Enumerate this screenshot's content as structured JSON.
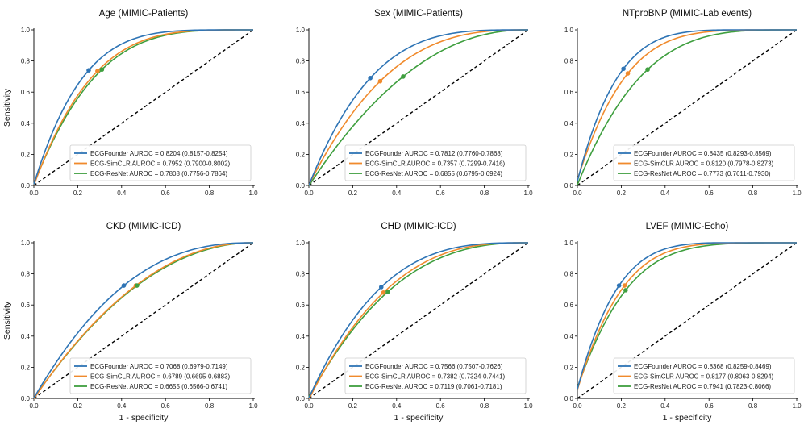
{
  "colors": {
    "ECGFounder": "#2e74b5",
    "ECG-SimCLR": "#f08a2c",
    "ECG-ResNet": "#3f9f3f",
    "diagonal": "#000000"
  },
  "chart_data": [
    {
      "type": "line",
      "title": "Age (MIMIC-Patients)",
      "xlabel": "",
      "ylabel": "Sensitivity",
      "xlim": [
        0,
        1
      ],
      "ylim": [
        0,
        1
      ],
      "xticks": [
        "0.0",
        "0.2",
        "0.4",
        "0.6",
        "0.8",
        "1.0"
      ],
      "yticks": [
        "0.0",
        "0.2",
        "0.4",
        "0.6",
        "0.8",
        "1.0"
      ],
      "legend_position": "bottom-right",
      "series": [
        {
          "name": "ECGFounder",
          "legend": "ECGFounder AUROC = 0.8204 (0.8157-0.8254)",
          "auc": 0.8204,
          "point": [
            0.25,
            0.74
          ]
        },
        {
          "name": "ECG-SimCLR",
          "legend": "ECG-SimCLR AUROC = 0.7952 (0.7900-0.8002)",
          "auc": 0.7952,
          "point": [
            0.29,
            0.735
          ]
        },
        {
          "name": "ECG-ResNet",
          "legend": "ECG-ResNet AUROC = 0.7808 (0.7756-0.7864)",
          "auc": 0.7808,
          "point": [
            0.31,
            0.745
          ]
        }
      ]
    },
    {
      "type": "line",
      "title": "Sex (MIMIC-Patients)",
      "xlabel": "",
      "ylabel": "",
      "xlim": [
        0,
        1
      ],
      "ylim": [
        0,
        1
      ],
      "xticks": [
        "0.0",
        "0.2",
        "0.4",
        "0.6",
        "0.8",
        "1.0"
      ],
      "yticks": [
        "0.0",
        "0.2",
        "0.4",
        "0.6",
        "0.8",
        "1.0"
      ],
      "legend_position": "bottom-right",
      "series": [
        {
          "name": "ECGFounder",
          "legend": "ECGFounder AUROC = 0.7812 (0.7760-0.7868)",
          "auc": 0.7812,
          "point": [
            0.28,
            0.69
          ]
        },
        {
          "name": "ECG-SimCLR",
          "legend": "ECG-SimCLR AUROC = 0.7357 (0.7299-0.7416)",
          "auc": 0.7357,
          "point": [
            0.325,
            0.67
          ]
        },
        {
          "name": "ECG-ResNet",
          "legend": "ECG-ResNet AUROC = 0.6855 (0.6795-0.6924)",
          "auc": 0.6855,
          "point": [
            0.43,
            0.7
          ]
        }
      ]
    },
    {
      "type": "line",
      "title": "NTproBNP (MIMIC-Lab events)",
      "xlabel": "",
      "ylabel": "",
      "xlim": [
        0,
        1
      ],
      "ylim": [
        0,
        1
      ],
      "xticks": [
        "0.0",
        "0.2",
        "0.4",
        "0.6",
        "0.8",
        "1.0"
      ],
      "yticks": [
        "0.0",
        "0.2",
        "0.4",
        "0.6",
        "0.8",
        "1.0"
      ],
      "legend_position": "bottom-right",
      "series": [
        {
          "name": "ECGFounder",
          "legend": "ECGFounder AUROC = 0.8435 (0.8293-0.8569)",
          "auc": 0.8435,
          "point": [
            0.21,
            0.75
          ]
        },
        {
          "name": "ECG-SimCLR",
          "legend": "ECG-SimCLR AUROC = 0.8120 (0.7978-0.8273)",
          "auc": 0.812,
          "point": [
            0.23,
            0.72
          ]
        },
        {
          "name": "ECG-ResNet",
          "legend": "ECG-ResNet AUROC = 0.7773 (0.7611-0.7930)",
          "auc": 0.7773,
          "point": [
            0.32,
            0.745
          ]
        }
      ]
    },
    {
      "type": "line",
      "title": "CKD (MIMIC-ICD)",
      "xlabel": "1 - specificity",
      "ylabel": "Sensitivity",
      "xlim": [
        0,
        1
      ],
      "ylim": [
        0,
        1
      ],
      "xticks": [
        "0.0",
        "0.2",
        "0.4",
        "0.6",
        "0.8",
        "1.0"
      ],
      "yticks": [
        "0.0",
        "0.2",
        "0.4",
        "0.6",
        "0.8",
        "1.0"
      ],
      "legend_position": "bottom-right",
      "series": [
        {
          "name": "ECGFounder",
          "legend": "ECGFounder AUROC = 0.7068 (0.6979-0.7149)",
          "auc": 0.7068,
          "point": [
            0.41,
            0.725
          ]
        },
        {
          "name": "ECG-SimCLR",
          "legend": "ECG-SimCLR AUROC = 0.6789 (0.6695-0.6883)",
          "auc": 0.6789,
          "point": [
            0.465,
            0.725
          ]
        },
        {
          "name": "ECG-ResNet",
          "legend": "ECG-ResNet AUROC = 0.6655 (0.6566-0.6741)",
          "auc": 0.6655,
          "point": [
            0.47,
            0.725
          ]
        }
      ]
    },
    {
      "type": "line",
      "title": "CHD (MIMIC-ICD)",
      "xlabel": "1 - specificity",
      "ylabel": "",
      "xlim": [
        0,
        1
      ],
      "ylim": [
        0,
        1
      ],
      "xticks": [
        "0.0",
        "0.2",
        "0.4",
        "0.6",
        "0.8",
        "1.0"
      ],
      "yticks": [
        "0.0",
        "0.2",
        "0.4",
        "0.6",
        "0.8",
        "1.0"
      ],
      "legend_position": "bottom-right",
      "series": [
        {
          "name": "ECGFounder",
          "legend": "ECGFounder AUROC = 0.7566 (0.7507-0.7626)",
          "auc": 0.7566,
          "point": [
            0.33,
            0.715
          ]
        },
        {
          "name": "ECG-SimCLR",
          "legend": "ECG-SimCLR AUROC = 0.7382 (0.7324-0.7441)",
          "auc": 0.7382,
          "point": [
            0.34,
            0.68
          ]
        },
        {
          "name": "ECG-ResNet",
          "legend": "ECG-ResNet AUROC = 0.7119 (0.7061-0.7181)",
          "auc": 0.7119,
          "point": [
            0.36,
            0.685
          ]
        }
      ]
    },
    {
      "type": "line",
      "title": "LVEF (MIMIC-Echo)",
      "xlabel": "1 - specificity",
      "ylabel": "",
      "xlim": [
        0,
        1
      ],
      "ylim": [
        0,
        1
      ],
      "xticks": [
        "0.0",
        "0.2",
        "0.4",
        "0.6",
        "0.8",
        "1.0"
      ],
      "yticks": [
        "0.0",
        "0.2",
        "0.4",
        "0.6",
        "0.8",
        "1.0"
      ],
      "legend_position": "bottom-right",
      "series": [
        {
          "name": "ECGFounder",
          "legend": "ECGFounder AUROC = 0.8368 (0.8259-0.8469)",
          "auc": 0.8368,
          "point": [
            0.19,
            0.725
          ]
        },
        {
          "name": "ECG-SimCLR",
          "legend": "ECG-SimCLR AUROC = 0.8177 (0.8063-0.8294)",
          "auc": 0.8177,
          "point": [
            0.215,
            0.725
          ]
        },
        {
          "name": "ECG-ResNet",
          "legend": "ECG-ResNet AUROC = 0.7941 (0.7823-0.8066)",
          "auc": 0.7941,
          "point": [
            0.22,
            0.695
          ]
        }
      ]
    }
  ]
}
